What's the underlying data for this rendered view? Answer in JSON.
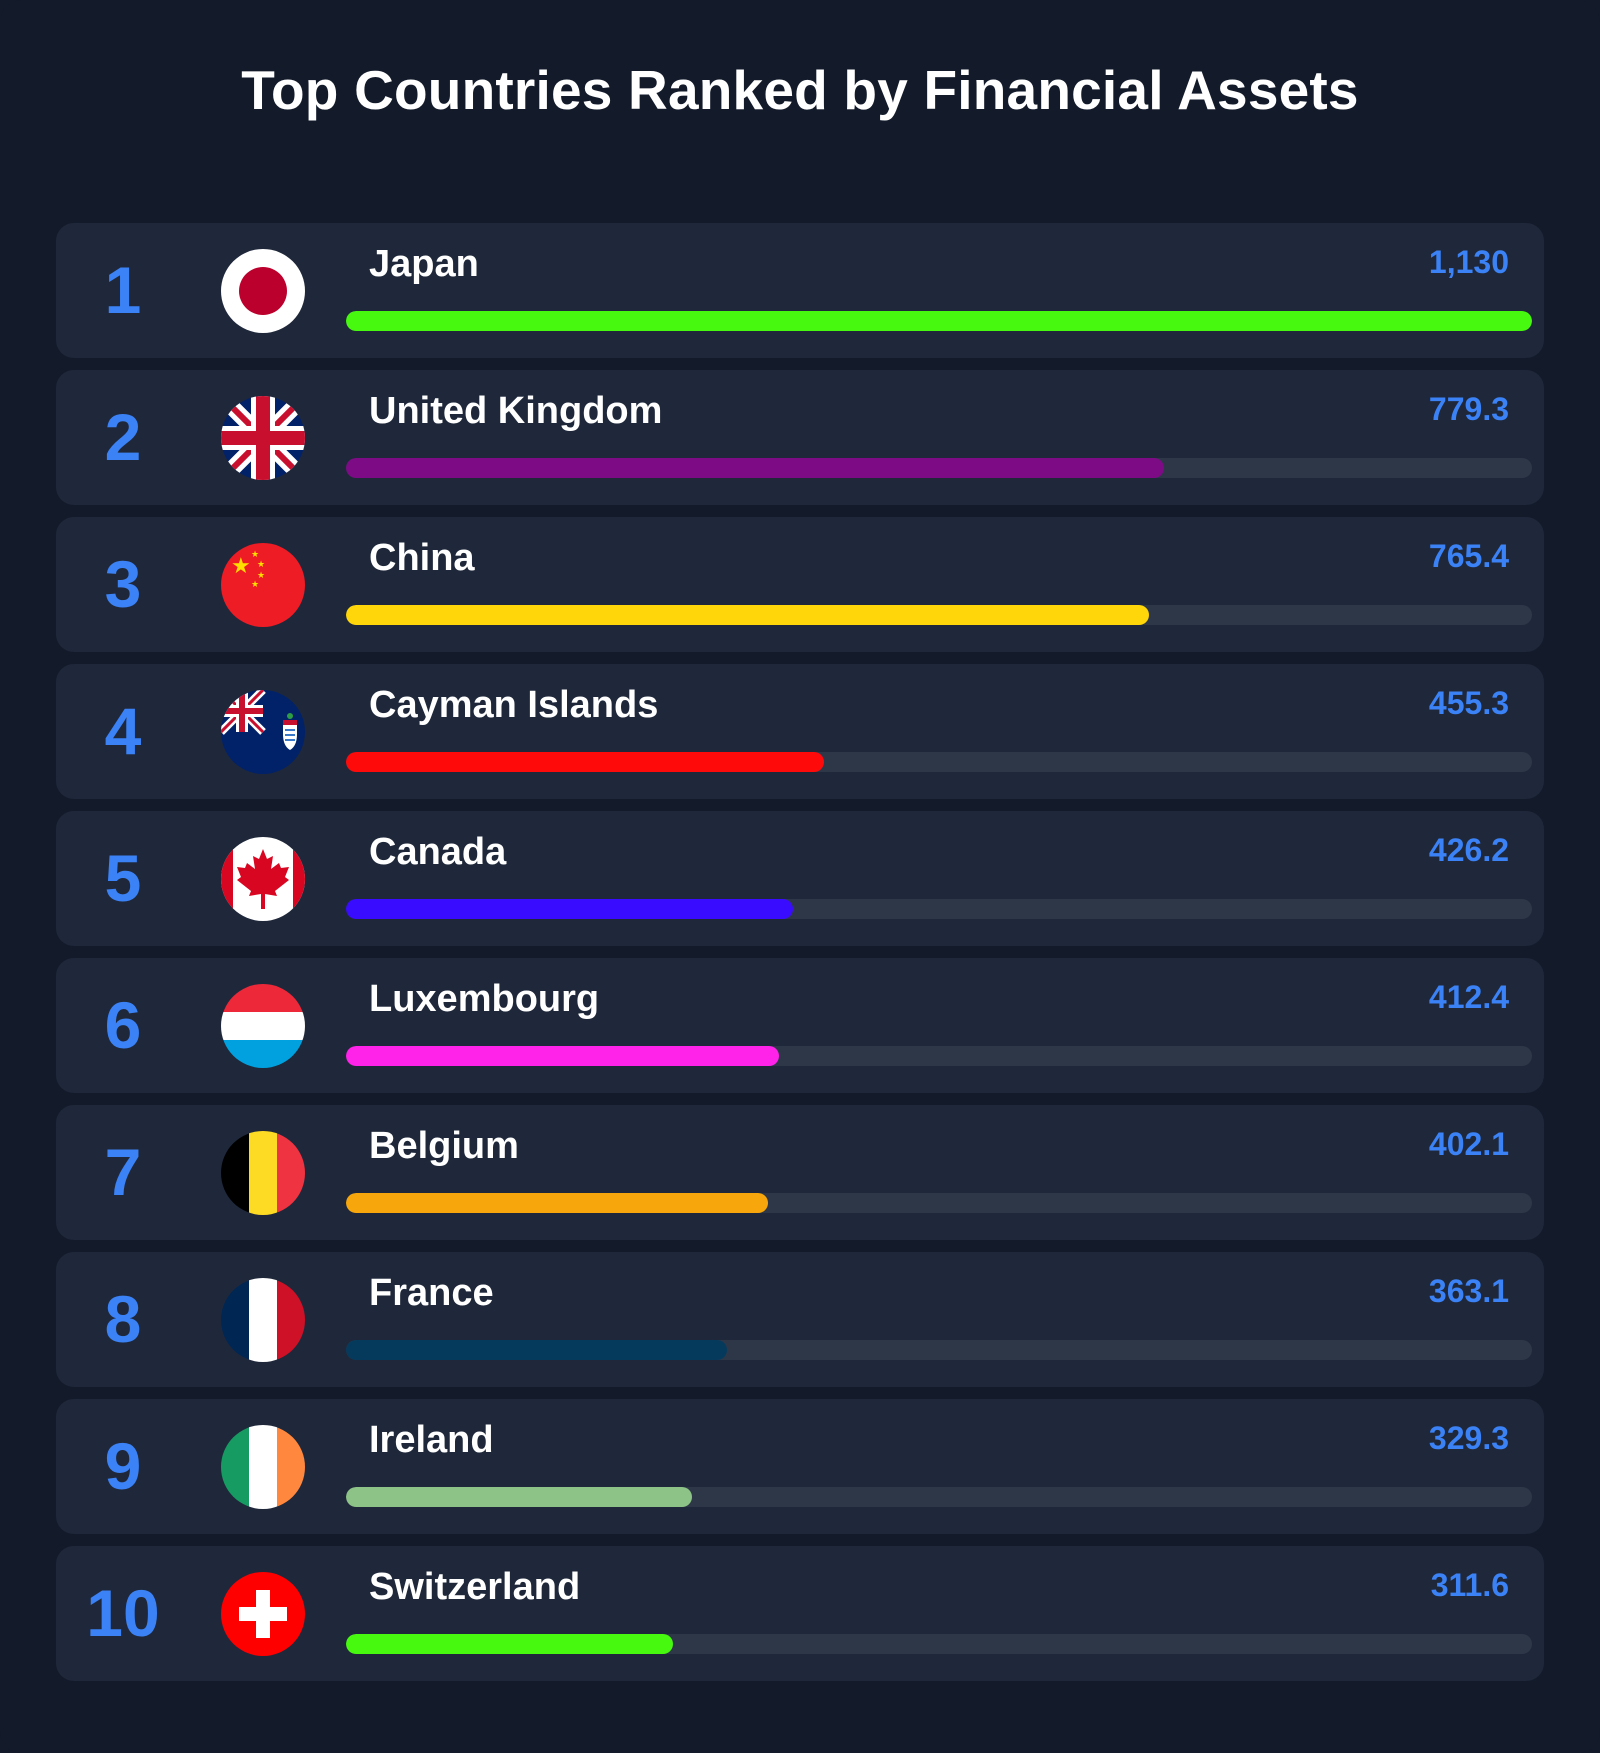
{
  "title": "Top Countries Ranked by Financial Assets",
  "chart_data": {
    "type": "bar",
    "orientation": "horizontal",
    "title": "Top Countries Ranked by Financial Assets",
    "categories": [
      "Japan",
      "United Kingdom",
      "China",
      "Cayman Islands",
      "Canada",
      "Luxembourg",
      "Belgium",
      "France",
      "Ireland",
      "Switzerland"
    ],
    "values": [
      1130,
      779.3,
      765.4,
      455.3,
      426.2,
      412.4,
      402.1,
      363.1,
      329.3,
      311.6
    ],
    "xlim": [
      0,
      1130
    ],
    "grid": false,
    "legend": "none",
    "items": [
      {
        "rank": "1",
        "country": "Japan",
        "value": 1130,
        "value_label": "1,130",
        "color": "#46f90f",
        "flag_icon": "japan-flag-icon"
      },
      {
        "rank": "2",
        "country": "United Kingdom",
        "value": 779.3,
        "value_label": "779.3",
        "color": "#7e0b86",
        "flag_icon": "united-kingdom-flag-icon"
      },
      {
        "rank": "3",
        "country": "China",
        "value": 765.4,
        "value_label": "765.4",
        "color": "#ffd60a",
        "flag_icon": "china-flag-icon"
      },
      {
        "rank": "4",
        "country": "Cayman Islands",
        "value": 455.3,
        "value_label": "455.3",
        "color": "#ff0a0a",
        "flag_icon": "cayman-islands-flag-icon"
      },
      {
        "rank": "5",
        "country": "Canada",
        "value": 426.2,
        "value_label": "426.2",
        "color": "#3a0cff",
        "flag_icon": "canada-flag-icon"
      },
      {
        "rank": "6",
        "country": "Luxembourg",
        "value": 412.4,
        "value_label": "412.4",
        "color": "#ff22e8",
        "flag_icon": "luxembourg-flag-icon"
      },
      {
        "rank": "7",
        "country": "Belgium",
        "value": 402.1,
        "value_label": "402.1",
        "color": "#f7a70c",
        "flag_icon": "belgium-flag-icon"
      },
      {
        "rank": "8",
        "country": "France",
        "value": 363.1,
        "value_label": "363.1",
        "color": "#063a5d",
        "flag_icon": "france-flag-icon"
      },
      {
        "rank": "9",
        "country": "Ireland",
        "value": 329.3,
        "value_label": "329.3",
        "color": "#8dc386",
        "flag_icon": "ireland-flag-icon"
      },
      {
        "rank": "10",
        "country": "Switzerland",
        "value": 311.6,
        "value_label": "311.6",
        "color": "#46f90f",
        "flag_icon": "switzerland-flag-icon"
      }
    ]
  }
}
